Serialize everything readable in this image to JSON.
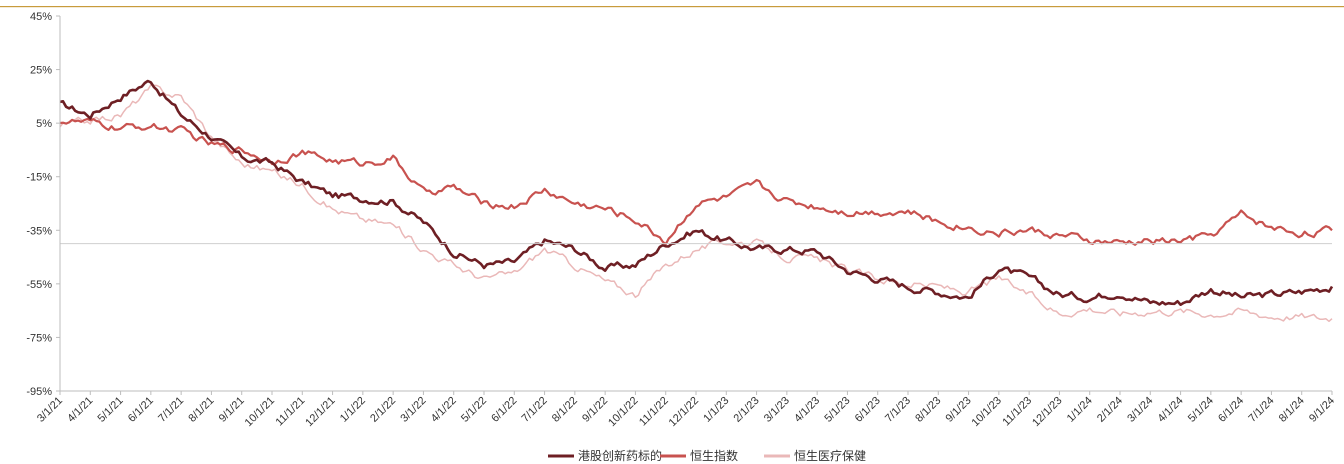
{
  "chart_data": {
    "type": "line",
    "title": "",
    "xlabel": "",
    "ylabel": "",
    "ylim": [
      -95,
      45
    ],
    "y_ticks": [
      45,
      25,
      5,
      -15,
      -35,
      -55,
      -75,
      -95
    ],
    "y_tick_labels": [
      "45%",
      "25%",
      "5%",
      "-15%",
      "-35%",
      "-55%",
      "-75%",
      "-95%"
    ],
    "x_tick_labels": [
      "3/1/21",
      "4/1/21",
      "5/1/21",
      "6/1/21",
      "7/1/21",
      "8/1/21",
      "9/1/21",
      "10/1/21",
      "11/1/21",
      "12/1/21",
      "1/1/22",
      "2/1/22",
      "3/1/22",
      "4/1/22",
      "5/1/22",
      "6/1/22",
      "7/1/22",
      "8/1/22",
      "9/1/22",
      "10/1/22",
      "11/1/22",
      "12/1/22",
      "1/1/23",
      "2/1/23",
      "3/1/23",
      "4/1/23",
      "5/1/23",
      "6/1/23",
      "7/1/23",
      "8/1/23",
      "9/1/23",
      "10/1/23",
      "11/1/23",
      "12/1/23",
      "1/1/24",
      "2/1/24",
      "3/1/24",
      "4/1/24",
      "5/1/24",
      "6/1/24",
      "7/1/24",
      "8/1/24",
      "9/1/24"
    ],
    "reference_line": -40,
    "legend_position": "bottom",
    "grid": false,
    "series": [
      {
        "name": "港股创新药标的",
        "color": "#6e1f24",
        "values": [
          12,
          8,
          15,
          21,
          8,
          0,
          -8,
          -10,
          -17,
          -22,
          -23,
          -24,
          -32,
          -43,
          -48,
          -47,
          -39,
          -42,
          -49,
          -48,
          -40,
          -35,
          -39,
          -42,
          -42,
          -43,
          -50,
          -53,
          -56,
          -58,
          -60,
          -49,
          -53,
          -59,
          -60,
          -58,
          -62,
          -62,
          -57,
          -60,
          -59,
          -58,
          -56
        ]
      },
      {
        "name": "恒生指数",
        "color": "#c8524f",
        "values": [
          6,
          5,
          3,
          4,
          2,
          -3,
          -5,
          -9,
          -6,
          -9,
          -10,
          -8,
          -21,
          -19,
          -25,
          -26,
          -20,
          -25,
          -27,
          -31,
          -39,
          -25,
          -23,
          -18,
          -24,
          -26,
          -28,
          -28,
          -28,
          -32,
          -34,
          -36,
          -35,
          -37,
          -39,
          -40,
          -39,
          -39,
          -37,
          -29,
          -34,
          -36,
          -35
        ]
      },
      {
        "name": "恒生医疗保健",
        "color": "#eab8b8",
        "values": [
          4,
          6,
          8,
          18,
          15,
          0,
          -10,
          -13,
          -18,
          -27,
          -31,
          -33,
          -42,
          -48,
          -53,
          -51,
          -42,
          -48,
          -54,
          -59,
          -48,
          -42,
          -39,
          -40,
          -45,
          -46,
          -50,
          -53,
          -55,
          -56,
          -58,
          -53,
          -59,
          -66,
          -64,
          -66,
          -65,
          -65,
          -66,
          -65,
          -67,
          -67,
          -68
        ]
      }
    ]
  }
}
